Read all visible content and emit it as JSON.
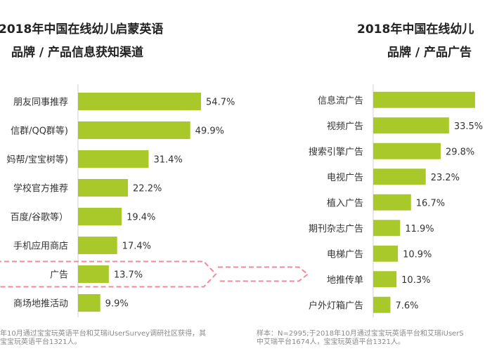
{
  "chart_data": [
    {
      "type": "bar",
      "orientation": "horizontal",
      "title": "2018年中国在线幼儿启蒙英语",
      "subtitle": "品牌 / 产品信息获知渠道",
      "categories": [
        "朋友同事推荐",
        "信群/QQ群等)",
        "妈帮/宝宝树等)",
        "学校官方推荐",
        "百度/谷歌等）",
        "手机应用商店",
        "广告",
        "商场地推活动"
      ],
      "values": [
        54.7,
        49.9,
        31.4,
        22.2,
        19.4,
        17.4,
        13.7,
        9.9
      ],
      "data_labels": [
        "54.7%",
        "49.9%",
        "31.4%",
        "22.2%",
        "19.4%",
        "17.4%",
        "13.7%",
        "9.9%"
      ],
      "highlight_category": "广告",
      "color": "#a9c92a",
      "note": [
        "年10月通过宝宝玩英语平台和艾瑞iUserSurvey调研社区获得，其",
        "宝宝玩英语平台1321人。"
      ]
    },
    {
      "type": "bar",
      "orientation": "horizontal",
      "title": "2018年中国在线幼儿",
      "subtitle": "品牌 / 产品广告",
      "categories": [
        "信息流广告",
        "视频广告",
        "搜索引擎广告",
        "电视广告",
        "植入广告",
        "期刊杂志广告",
        "电梯广告",
        "地推传单",
        "户外灯箱广告"
      ],
      "values": [
        45.0,
        33.5,
        29.8,
        23.2,
        16.7,
        11.9,
        10.9,
        10.3,
        7.6
      ],
      "data_labels": [
        "",
        "33.5%",
        "29.8%",
        "23.2%",
        "16.7%",
        "11.9%",
        "10.9%",
        "10.3%",
        "7.6%"
      ],
      "color": "#a9c92a",
      "note": [
        "样本：N=2995;于2018年10月通过宝宝玩英语平台和艾瑞iUserS",
        "中艾瑞平台1674人，宝宝玩英语平台1321人。"
      ]
    }
  ]
}
